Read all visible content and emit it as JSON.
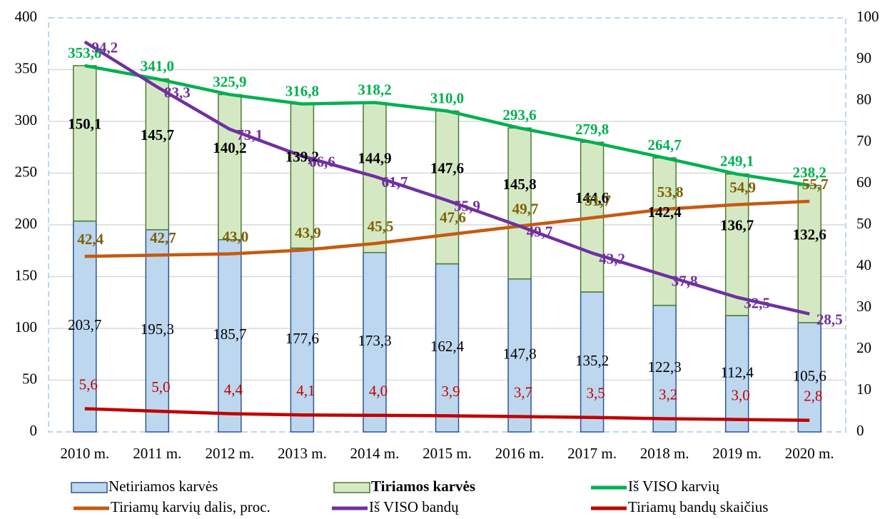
{
  "chart_data": {
    "type": "bar",
    "categories": [
      "2010 m.",
      "2011 m.",
      "2012 m.",
      "2013 m.",
      "2014 m.",
      "2015 m.",
      "2016 m.",
      "2017 m.",
      "2018 m.",
      "2019 m.",
      "2020 m."
    ],
    "ylim": [
      0,
      400
    ],
    "yticks": [
      0,
      50,
      100,
      150,
      200,
      250,
      300,
      350,
      400
    ],
    "y2lim": [
      0,
      100
    ],
    "y2ticks": [
      0,
      10,
      20,
      30,
      40,
      50,
      60,
      70,
      80,
      90,
      100
    ],
    "grid": true,
    "stacked": true,
    "series": [
      {
        "name": "Netiriamos karvės",
        "type": "bar",
        "color": "#bdd7ee",
        "edge": "#2f5597",
        "label_color": "#000000",
        "label_bold": false,
        "values": [
          203.7,
          195.3,
          185.7,
          177.6,
          173.3,
          162.4,
          147.8,
          135.2,
          122.3,
          112.4,
          105.6
        ],
        "value_labels": [
          "203,7",
          "195,3",
          "185,7",
          "177,6",
          "173,3",
          "162,4",
          "147,8",
          "135,2",
          "122,3",
          "112,4",
          "105,6"
        ]
      },
      {
        "name": "Tiriamos karvės",
        "type": "bar",
        "color": "#d5e8c4",
        "edge": "#4d7a33",
        "label_color": "#000000",
        "label_bold": true,
        "values": [
          150.1,
          145.7,
          140.2,
          139.2,
          144.9,
          147.6,
          145.8,
          144.6,
          142.4,
          136.7,
          132.6
        ],
        "value_labels": [
          "150,1",
          "145,7",
          "140,2",
          "139,2",
          "144,9",
          "147,6",
          "145,8",
          "144,6",
          "142,4",
          "136,7",
          "132,6"
        ]
      },
      {
        "name": "Iš VISO karvių",
        "type": "line",
        "color": "#00b050",
        "label_color": "#00b050",
        "label_bold": true,
        "values": [
          353.8,
          341.0,
          325.9,
          316.8,
          318.2,
          310.0,
          293.6,
          279.8,
          264.7,
          249.1,
          238.2
        ],
        "value_labels": [
          "353,8",
          "341,0",
          "325,9",
          "316,8",
          "318,2",
          "310,0",
          "293,6",
          "279,8",
          "264,7",
          "249,1",
          "238,2"
        ]
      },
      {
        "name": "Tiriamų karvių dalis, proc.",
        "type": "line",
        "axis": "y2",
        "color": "#c55a11",
        "label_color": "#7f6000",
        "label_bold": true,
        "values": [
          42.4,
          42.7,
          43.0,
          43.9,
          45.5,
          47.6,
          49.7,
          51.7,
          53.8,
          54.9,
          55.7
        ],
        "value_labels": [
          "42,4",
          "42,7",
          "43,0",
          "43,9",
          "45,5",
          "47,6",
          "49,7",
          "51,7",
          "53,8",
          "54,9",
          "55,7"
        ]
      },
      {
        "name": "Iš VISO bandų",
        "type": "line",
        "axis": "y2",
        "color": "#7030a0",
        "label_color": "#7030a0",
        "label_bold": true,
        "values": [
          94.2,
          83.3,
          73.1,
          66.6,
          61.7,
          55.9,
          49.7,
          43.2,
          37.8,
          32.5,
          28.5
        ],
        "value_labels": [
          "94,2",
          "83,3",
          "73,1",
          "66,6",
          "61,7",
          "55,9",
          "49,7",
          "43,2",
          "37,8",
          "32,5",
          "28,5"
        ]
      },
      {
        "name": "Tiriamų bandų skaičius",
        "type": "line",
        "axis": "y2",
        "color": "#c00000",
        "label_color": "#c00000",
        "label_bold": false,
        "values": [
          5.6,
          5.0,
          4.4,
          4.1,
          4.0,
          3.9,
          3.7,
          3.5,
          3.2,
          3.0,
          2.8
        ],
        "value_labels": [
          "5,6",
          "5,0",
          "4,4",
          "4,1",
          "4,0",
          "3,9",
          "3,7",
          "3,5",
          "3,2",
          "3,0",
          "2,8"
        ]
      }
    ]
  }
}
